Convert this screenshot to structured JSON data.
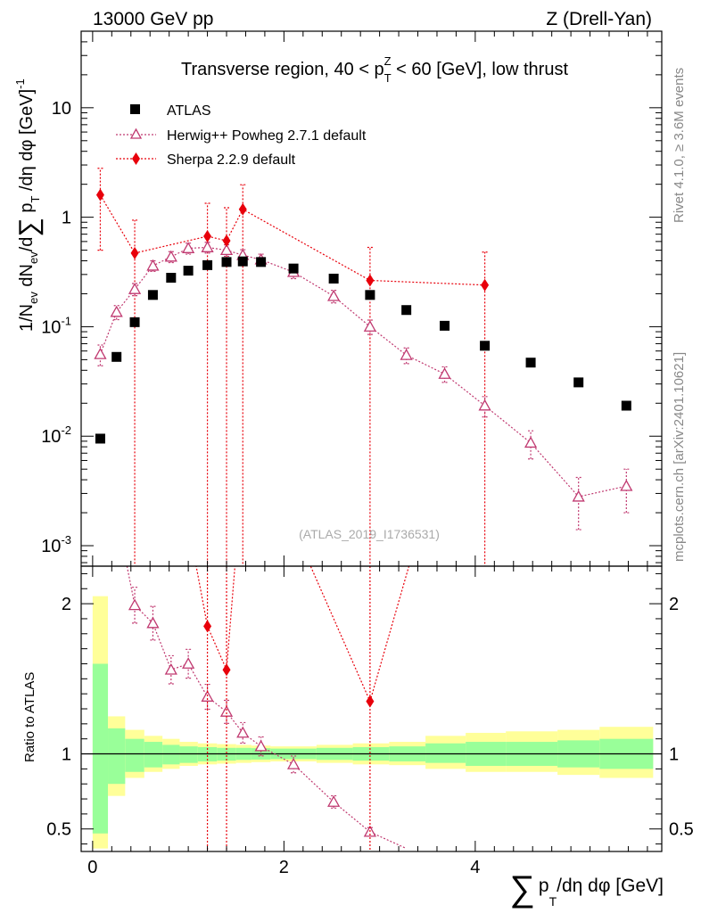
{
  "header": {
    "left": "13000 GeV pp",
    "right": "Z (Drell-Yan)"
  },
  "side_labels": {
    "rivet": "Rivet 4.1.0, ≥ 3.6M events",
    "mcplots": "mcplots.cern.ch [arXiv:2401.10621]"
  },
  "chart_data": {
    "type": "scatter",
    "title": "Transverse region, 40 < pT^Z < 60 [GeV], low thrust",
    "title_parts": {
      "a": "Transverse region, 40 < p",
      "sub": "T",
      "sup": "Z",
      "b": " < 60 [GeV], low thrust"
    },
    "analysis_id": "(ATLAS_2019_I1736531)",
    "xlabel": "∑ pT/dη dφ [GeV]",
    "xlabel_parts": {
      "sigma": "∑",
      "p": "p",
      "sub": "T",
      "rest": "/dη dφ [GeV]"
    },
    "ylabel_main": "1/Nev dNev/d∑ pT/dη dφ [GeV]^-1",
    "ylabel_parts": {
      "a": "1/N",
      "ev1": "ev",
      "b": " dN",
      "ev2": "ev",
      "c": "/d",
      "sigma": "∑",
      "d": " p",
      "sub": "T",
      "e": " /dη dφ  [GeV]",
      "sup": "-1"
    },
    "ylabel_ratio": "Ratio to ATLAS",
    "xlim": [
      -0.12,
      5.95
    ],
    "ylim_main": [
      0.00065,
      50
    ],
    "ylim_ratio": [
      0.35,
      2.25
    ],
    "yscale_main": "log",
    "x_ticks": [
      0,
      2,
      4
    ],
    "x_tick_labels": [
      "0",
      "2",
      "4"
    ],
    "y_ticks_main": [
      {
        "value": 0.001,
        "base": "10",
        "exp": "-3"
      },
      {
        "value": 0.01,
        "base": "10",
        "exp": "-2"
      },
      {
        "value": 0.1,
        "base": "10",
        "exp": "-1"
      },
      {
        "value": 1,
        "base": "1",
        "exp": ""
      },
      {
        "value": 10,
        "base": "10",
        "exp": ""
      }
    ],
    "y_ticks_ratio": [
      {
        "value": 0.5,
        "label": "0.5"
      },
      {
        "value": 1,
        "label": "1"
      },
      {
        "value": 2,
        "label": "2"
      }
    ],
    "legend_position": "top-left",
    "series": [
      {
        "name": "ATLAS",
        "color": "#000000",
        "marker": "square",
        "x": [
          0.08,
          0.25,
          0.44,
          0.63,
          0.82,
          1.0,
          1.2,
          1.4,
          1.57,
          1.76,
          2.1,
          2.52,
          2.9,
          3.28,
          3.68,
          4.1,
          4.58,
          5.08,
          5.58
        ],
        "y": [
          0.0095,
          0.053,
          0.11,
          0.195,
          0.28,
          0.325,
          0.365,
          0.39,
          0.395,
          0.39,
          0.34,
          0.275,
          0.195,
          0.142,
          0.102,
          0.067,
          0.047,
          0.031,
          0.019
        ]
      },
      {
        "name": "Herwig++ Powheg 2.7.1 default",
        "color": "#c03970",
        "marker": "triangle-open",
        "x": [
          0.08,
          0.25,
          0.44,
          0.63,
          0.82,
          1.0,
          1.2,
          1.4,
          1.57,
          1.76,
          2.1,
          2.52,
          2.9,
          3.28,
          3.68,
          4.1,
          4.58,
          5.08,
          5.58
        ],
        "y": [
          0.056,
          0.136,
          0.22,
          0.36,
          0.435,
          0.52,
          0.53,
          0.5,
          0.45,
          0.41,
          0.315,
          0.19,
          0.1,
          0.055,
          0.037,
          0.019,
          0.0087,
          0.0028,
          0.0035
        ],
        "err_lo": [
          0.012,
          0.02,
          0.028,
          0.04,
          0.05,
          0.06,
          0.06,
          0.06,
          0.055,
          0.05,
          0.04,
          0.025,
          0.015,
          0.009,
          0.006,
          0.004,
          0.0025,
          0.0014,
          0.0015
        ],
        "err_hi": [
          0.012,
          0.02,
          0.028,
          0.04,
          0.05,
          0.06,
          0.06,
          0.06,
          0.055,
          0.05,
          0.04,
          0.025,
          0.015,
          0.009,
          0.006,
          0.004,
          0.0025,
          0.0014,
          0.0015
        ]
      },
      {
        "name": "Sherpa 2.2.9 default",
        "color": "#e8000b",
        "marker": "diamond",
        "x": [
          0.08,
          0.44,
          1.2,
          1.4,
          1.57,
          2.9,
          4.1
        ],
        "y": [
          1.6,
          0.47,
          0.67,
          0.61,
          1.18,
          0.265,
          0.24
        ],
        "err_lo": [
          1.1,
          0.47,
          0.67,
          0.61,
          1.18,
          0.265,
          0.24
        ],
        "err_hi": [
          1.2,
          0.47,
          0.67,
          0.61,
          0.8,
          0.265,
          0.24
        ]
      }
    ],
    "ratio": {
      "bin_edges": [
        0.0,
        0.16,
        0.34,
        0.54,
        0.73,
        0.91,
        1.1,
        1.3,
        1.5,
        1.66,
        1.86,
        2.34,
        2.72,
        3.1,
        3.48,
        3.9,
        4.32,
        4.86,
        5.3,
        5.86
      ],
      "band_inner_lo": [
        0.47,
        0.8,
        0.88,
        0.91,
        0.93,
        0.94,
        0.95,
        0.955,
        0.96,
        0.962,
        0.965,
        0.96,
        0.955,
        0.95,
        0.94,
        0.92,
        0.92,
        0.91,
        0.9
      ],
      "band_inner_hi": [
        1.6,
        1.17,
        1.1,
        1.08,
        1.06,
        1.05,
        1.045,
        1.04,
        1.04,
        1.038,
        1.035,
        1.04,
        1.045,
        1.05,
        1.07,
        1.08,
        1.08,
        1.09,
        1.1
      ],
      "band_outer_lo": [
        0.37,
        0.72,
        0.84,
        0.88,
        0.9,
        0.92,
        0.93,
        0.935,
        0.94,
        0.945,
        0.95,
        0.94,
        0.93,
        0.925,
        0.9,
        0.88,
        0.88,
        0.86,
        0.84
      ],
      "band_outer_hi": [
        2.05,
        1.25,
        1.16,
        1.12,
        1.1,
        1.08,
        1.07,
        1.065,
        1.06,
        1.055,
        1.05,
        1.06,
        1.07,
        1.08,
        1.12,
        1.14,
        1.15,
        1.16,
        1.18
      ],
      "herwig_x": [
        0.44,
        0.63,
        0.82,
        1.0,
        1.2,
        1.4,
        1.57,
        1.76,
        2.1,
        2.52,
        2.9
      ],
      "herwig_y": [
        1.99,
        1.87,
        1.56,
        1.6,
        1.38,
        1.28,
        1.14,
        1.05,
        0.93,
        0.68,
        0.48
      ],
      "herwig_line_x": [
        0.25,
        0.44,
        0.63,
        0.82,
        1.0,
        1.2,
        1.4,
        1.57,
        1.76,
        2.1,
        2.52,
        2.9,
        3.28
      ],
      "herwig_line_y": [
        2.6,
        1.99,
        1.87,
        1.56,
        1.6,
        1.38,
        1.28,
        1.14,
        1.05,
        0.93,
        0.68,
        0.48,
        0.37
      ],
      "sherpa_x": [
        1.2,
        1.4,
        2.9
      ],
      "sherpa_y": [
        1.85,
        1.56,
        1.35
      ],
      "sherpa_lines": [
        {
          "x": [
            0.95,
            1.2
          ],
          "y": [
            2.7,
            1.85
          ]
        },
        {
          "x": [
            1.2,
            1.4
          ],
          "y": [
            1.85,
            1.56
          ]
        },
        {
          "x": [
            1.4,
            1.57
          ],
          "y": [
            1.56,
            2.9
          ]
        },
        {
          "x": [
            1.83,
            2.9
          ],
          "y": [
            2.9,
            1.35
          ]
        },
        {
          "x": [
            2.9,
            3.6
          ],
          "y": [
            1.35,
            2.9
          ]
        }
      ]
    }
  }
}
